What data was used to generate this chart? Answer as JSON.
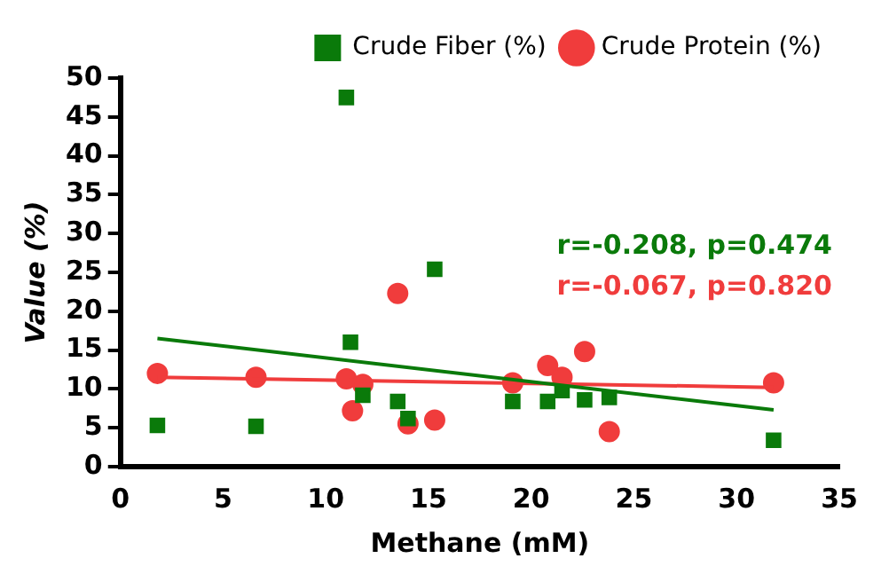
{
  "chart_data": {
    "type": "scatter",
    "xlabel": "Methane (mM)",
    "ylabel": "Value (%)",
    "xlim": [
      0,
      35
    ],
    "xticks": [
      0,
      5,
      10,
      15,
      20,
      25,
      30,
      35
    ],
    "ylim": [
      0,
      50
    ],
    "yticks": [
      0,
      5,
      10,
      15,
      20,
      25,
      30,
      35,
      40,
      45,
      50
    ],
    "grid": false,
    "legend": "top right",
    "series": [
      {
        "name": "Crude Protein (%)",
        "color": "#f03c3c",
        "marker": "circle",
        "x": [
          1.8,
          6.6,
          11,
          11.3,
          11.8,
          13.5,
          14,
          15.3,
          19.1,
          20.8,
          21.5,
          22.6,
          23.8,
          31.8
        ],
        "values": [
          12,
          11.5,
          11.3,
          7.2,
          10.6,
          22.3,
          5.5,
          6,
          10.8,
          13,
          11.5,
          14.8,
          4.5,
          10.8
        ]
      },
      {
        "name": "Crude Fiber (%)",
        "color": "#0a7a0a",
        "marker": "square",
        "x": [
          1.8,
          6.6,
          11,
          11.2,
          11.8,
          13.5,
          14,
          15.3,
          19.1,
          20.8,
          21.5,
          22.6,
          23.8,
          31.8
        ],
        "values": [
          5.3,
          5.2,
          47.5,
          16,
          9.2,
          8.4,
          6.2,
          25.4,
          8.4,
          8.4,
          9.8,
          8.6,
          8.9,
          3.4
        ]
      },
      {
        "type": "line",
        "color": "#f03c3c",
        "marker": "none",
        "x": [
          1.8,
          31.8
        ],
        "values": [
          11.5,
          10.2
        ]
      },
      {
        "type": "line",
        "color": "#0a7a0a",
        "marker": "none",
        "x": [
          1.8,
          31.8
        ],
        "values": [
          16.5,
          7.3
        ]
      }
    ],
    "annotations": [
      "r=-0.208, p=0.474",
      "r=-0.067, p=0.820"
    ]
  }
}
